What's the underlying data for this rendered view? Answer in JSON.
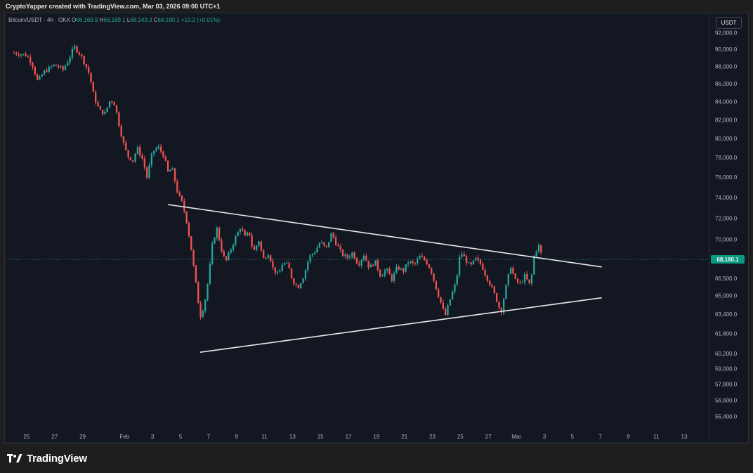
{
  "header": {
    "attribution": "CryptoYapper created with TradingView.com, Mar 03, 2026 09:00 UTC+1"
  },
  "legend": {
    "symbol": "Bitcoin/USDT · 4h · OKX",
    "open_label": "O",
    "open": "68,169.9",
    "high_label": "H",
    "high": "68,189.1",
    "low_label": "L",
    "low": "68,143.3",
    "close_label": "C",
    "close": "68,180.1",
    "change": "+10.2 (+0.01%)"
  },
  "currency_button": "USDT",
  "footer": {
    "brand": "TradingView"
  },
  "chart_data": {
    "type": "candlestick",
    "symbol": "Bitcoin/USDT",
    "interval": "4h",
    "exchange": "OKX",
    "price_scale": "log",
    "y_ticks": [
      "92,000.0",
      "90,000.0",
      "88,000.0",
      "86,000.0",
      "84,000.0",
      "82,000.0",
      "80,000.0",
      "78,000.0",
      "76,000.0",
      "74,000.0",
      "72,000.0",
      "70,000.0",
      "66,500.0",
      "65,000.0",
      "63,400.0",
      "61,800.0",
      "60,200.0",
      "59,000.0",
      "57,800.0",
      "56,600.0",
      "55,400.0"
    ],
    "y_tick_values": [
      92000,
      90000,
      88000,
      86000,
      84000,
      82000,
      80000,
      78000,
      76000,
      74000,
      72000,
      70000,
      66500,
      65000,
      63400,
      61800,
      60200,
      59000,
      57800,
      56600,
      55400
    ],
    "x_ticks": [
      "25",
      "27",
      "29",
      "Feb",
      "3",
      "5",
      "7",
      "9",
      "11",
      "13",
      "15",
      "17",
      "19",
      "21",
      "23",
      "25",
      "27",
      "Mar",
      "3",
      "5",
      "7",
      "9",
      "11",
      "13"
    ],
    "x_tick_days": [
      -7,
      -5,
      -3,
      0,
      2,
      4,
      6,
      8,
      10,
      12,
      14,
      16,
      18,
      20,
      22,
      24,
      26,
      28,
      30,
      32,
      34,
      36,
      38,
      40
    ],
    "last_price": 68180.1,
    "last_price_label": "68,180.1",
    "close_path": [
      [
        -7.9,
        89600
      ],
      [
        -7.0,
        89300
      ],
      [
        -6.6,
        88300
      ],
      [
        -6.2,
        86200
      ],
      [
        -5.8,
        87300
      ],
      [
        -5.0,
        88200
      ],
      [
        -4.4,
        87600
      ],
      [
        -4.0,
        88800
      ],
      [
        -3.6,
        90300
      ],
      [
        -3.2,
        89500
      ],
      [
        -2.8,
        88200
      ],
      [
        -2.5,
        87000
      ],
      [
        -2.2,
        84600
      ],
      [
        -1.8,
        83000
      ],
      [
        -1.4,
        82700
      ],
      [
        -1.0,
        84300
      ],
      [
        -0.7,
        83700
      ],
      [
        -0.4,
        81500
      ],
      [
        -0.1,
        79600
      ],
      [
        0.2,
        78200
      ],
      [
        0.6,
        77700
      ],
      [
        0.9,
        79000
      ],
      [
        1.3,
        77800
      ],
      [
        1.6,
        76000
      ],
      [
        2.0,
        78600
      ],
      [
        2.4,
        79100
      ],
      [
        2.8,
        78200
      ],
      [
        3.1,
        76500
      ],
      [
        3.4,
        76900
      ],
      [
        3.8,
        74400
      ],
      [
        4.1,
        73500
      ],
      [
        4.4,
        72000
      ],
      [
        4.8,
        68800
      ],
      [
        5.1,
        66000
      ],
      [
        5.4,
        63200
      ],
      [
        5.7,
        64200
      ],
      [
        6.0,
        66500
      ],
      [
        6.3,
        69800
      ],
      [
        6.6,
        71000
      ],
      [
        6.9,
        69200
      ],
      [
        7.2,
        67900
      ],
      [
        7.5,
        68800
      ],
      [
        7.9,
        70100
      ],
      [
        8.3,
        71200
      ],
      [
        8.6,
        70200
      ],
      [
        8.9,
        70700
      ],
      [
        9.2,
        68800
      ],
      [
        9.6,
        69900
      ],
      [
        9.9,
        68200
      ],
      [
        10.3,
        68800
      ],
      [
        10.6,
        67400
      ],
      [
        11.0,
        66700
      ],
      [
        11.3,
        67900
      ],
      [
        11.7,
        67600
      ],
      [
        12.0,
        66300
      ],
      [
        12.4,
        65700
      ],
      [
        12.8,
        66700
      ],
      [
        13.2,
        68400
      ],
      [
        13.6,
        68900
      ],
      [
        14.0,
        69800
      ],
      [
        14.4,
        69100
      ],
      [
        14.8,
        70600
      ],
      [
        15.1,
        69700
      ],
      [
        15.5,
        68700
      ],
      [
        15.9,
        68300
      ],
      [
        16.3,
        68800
      ],
      [
        16.7,
        67700
      ],
      [
        17.1,
        68600
      ],
      [
        17.5,
        67400
      ],
      [
        17.9,
        68000
      ],
      [
        18.3,
        66700
      ],
      [
        18.7,
        67300
      ],
      [
        19.1,
        66400
      ],
      [
        19.5,
        67500
      ],
      [
        19.9,
        67100
      ],
      [
        20.3,
        68000
      ],
      [
        20.7,
        67700
      ],
      [
        21.1,
        68400
      ],
      [
        21.5,
        68100
      ],
      [
        21.9,
        67200
      ],
      [
        22.2,
        65900
      ],
      [
        22.6,
        64400
      ],
      [
        22.9,
        63200
      ],
      [
        23.3,
        64800
      ],
      [
        23.7,
        66200
      ],
      [
        24.0,
        68900
      ],
      [
        24.3,
        68300
      ],
      [
        24.7,
        67500
      ],
      [
        25.1,
        68200
      ],
      [
        25.5,
        67700
      ],
      [
        25.8,
        66800
      ],
      [
        26.2,
        65800
      ],
      [
        26.6,
        64600
      ],
      [
        26.9,
        63500
      ],
      [
        27.2,
        65400
      ],
      [
        27.6,
        67600
      ],
      [
        27.9,
        66300
      ],
      [
        28.3,
        66000
      ],
      [
        28.6,
        66700
      ],
      [
        29.0,
        65800
      ],
      [
        29.3,
        68800
      ],
      [
        29.6,
        69400
      ],
      [
        29.9,
        68180
      ]
    ],
    "trendlines": [
      {
        "name": "descending-resistance",
        "from": [
          3.1,
          73300
        ],
        "to": [
          34.1,
          67500
        ]
      },
      {
        "name": "ascending-support",
        "from": [
          5.4,
          60300
        ],
        "to": [
          34.1,
          64800
        ]
      }
    ],
    "xlabel": "",
    "ylabel": "",
    "grid": false,
    "ylim": [
      54500,
      94300
    ],
    "xlim": [
      -8.5,
      41.5
    ]
  }
}
